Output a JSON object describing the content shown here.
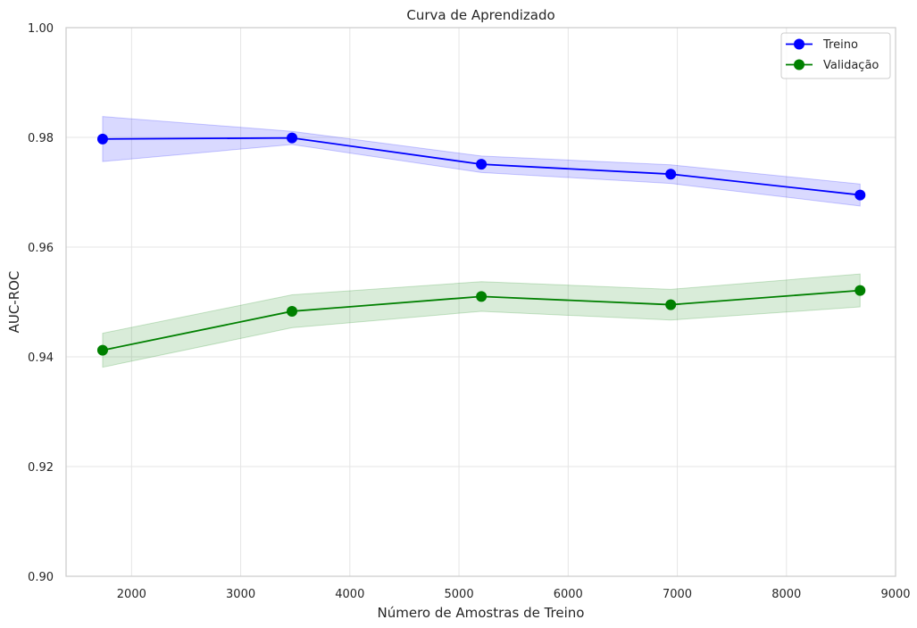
{
  "chart_data": {
    "type": "line",
    "title": "Curva de Aprendizado",
    "xlabel": "Número de Amostras de Treino",
    "ylabel": "AUC-ROC",
    "xlim": [
      1400,
      9000
    ],
    "ylim": [
      0.9,
      1.0
    ],
    "x_ticks": [
      2000,
      3000,
      4000,
      5000,
      6000,
      7000,
      8000,
      9000
    ],
    "y_ticks": [
      0.9,
      0.92,
      0.94,
      0.96,
      0.98,
      1.0
    ],
    "x_tick_labels": [
      "2000",
      "3000",
      "4000",
      "5000",
      "6000",
      "7000",
      "8000",
      "9000"
    ],
    "y_tick_labels": [
      "0.90",
      "0.92",
      "0.94",
      "0.96",
      "0.98",
      "1.00"
    ],
    "grid": true,
    "legend_position": "top-right",
    "x": [
      1735,
      3470,
      5205,
      6940,
      8675
    ],
    "series": [
      {
        "name": "Treino",
        "color": "#0000ff",
        "values": [
          0.9797,
          0.9799,
          0.9751,
          0.9733,
          0.9695
        ],
        "band_upper": [
          0.9838,
          0.9811,
          0.9766,
          0.975,
          0.9715
        ],
        "band_lower": [
          0.9756,
          0.9787,
          0.9736,
          0.9716,
          0.9675
        ]
      },
      {
        "name": "Validação",
        "color": "#008000",
        "values": [
          0.9412,
          0.9483,
          0.951,
          0.9495,
          0.9521
        ],
        "band_upper": [
          0.9443,
          0.9513,
          0.9537,
          0.9523,
          0.9551
        ],
        "band_lower": [
          0.9381,
          0.9453,
          0.9483,
          0.9467,
          0.9491
        ]
      }
    ]
  }
}
